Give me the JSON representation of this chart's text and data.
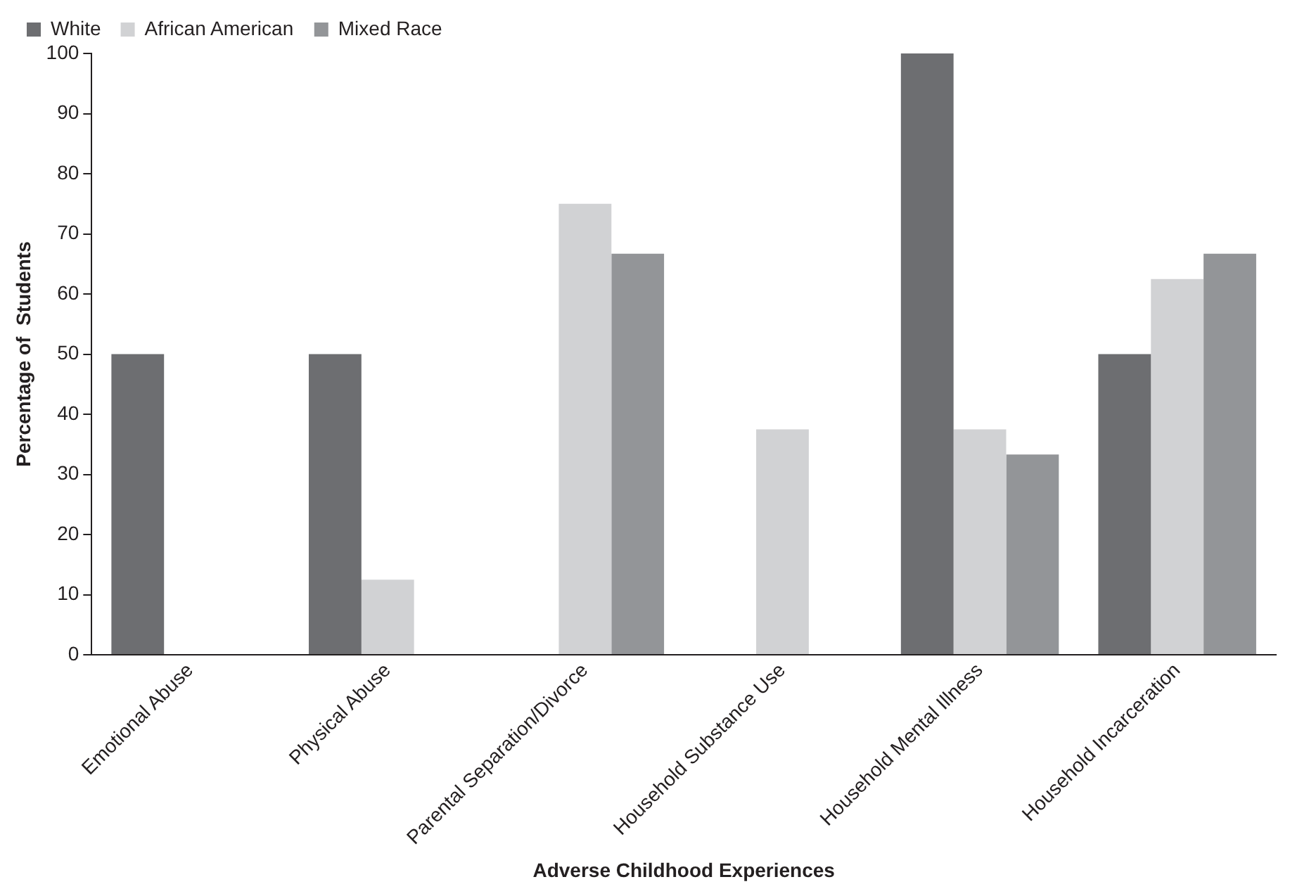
{
  "chart_data": {
    "type": "bar",
    "xlabel": "Adverse Childhood Experiences",
    "ylabel": "Percentage of  Students",
    "categories": [
      "Emotional Abuse",
      "Physical Abuse",
      "Parental Separation/Divorce",
      "Household Substance Use",
      "Household Mental Illness",
      "Household Incarceration"
    ],
    "series": [
      {
        "name": "White",
        "color": "#6d6e71",
        "values": [
          50,
          50,
          0,
          0,
          100,
          50
        ]
      },
      {
        "name": "African American",
        "color": "#d1d2d4",
        "values": [
          0,
          12.5,
          75,
          37.5,
          37.5,
          62.5
        ]
      },
      {
        "name": "Mixed Race",
        "color": "#939598",
        "values": [
          0,
          0,
          66.7,
          0,
          33.3,
          66.7
        ]
      }
    ],
    "ylim": [
      0,
      100
    ],
    "yticks": [
      0,
      10,
      20,
      30,
      40,
      50,
      60,
      70,
      80,
      90,
      100
    ],
    "grid": false,
    "legend": "top left"
  }
}
